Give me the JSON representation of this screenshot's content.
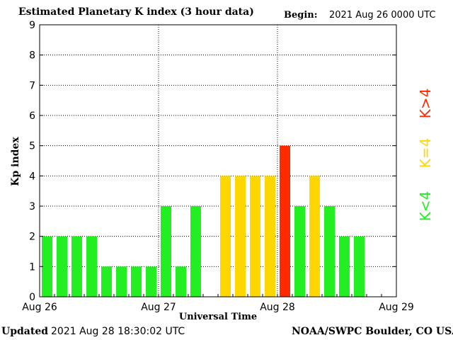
{
  "header": {
    "title": "Estimated Planetary K index (3 hour data)",
    "begin_label": "Begin:",
    "begin_value": "2021 Aug 26 0000 UTC"
  },
  "footer": {
    "updated_label": "Updated",
    "updated_value": "2021 Aug 28 18:30:02 UTC",
    "credit": "NOAA/SWPC Boulder, CO USA"
  },
  "legend": {
    "high": "K>4",
    "equal": "K=4",
    "low": "K<4"
  },
  "colors": {
    "low": "#22ee22",
    "equal": "#ffd700",
    "high": "#ff2a00"
  },
  "chart_data": {
    "type": "bar",
    "title": "Estimated Planetary K index (3 hour data)",
    "xlabel": "Universal Time",
    "ylabel": "Kp index",
    "ylim": [
      0,
      9
    ],
    "yticks": [
      "0",
      "1",
      "2",
      "3",
      "4",
      "5",
      "6",
      "7",
      "8",
      "9"
    ],
    "xticks": [
      "Aug 26",
      "Aug 27",
      "Aug 28",
      "Aug 29"
    ],
    "grid": true,
    "interval_hours": 3,
    "values": [
      2,
      2,
      2,
      2,
      1,
      1,
      1,
      1,
      3,
      1,
      3,
      null,
      4,
      4,
      4,
      4,
      5,
      3,
      4,
      3,
      2,
      2,
      null,
      null
    ]
  }
}
